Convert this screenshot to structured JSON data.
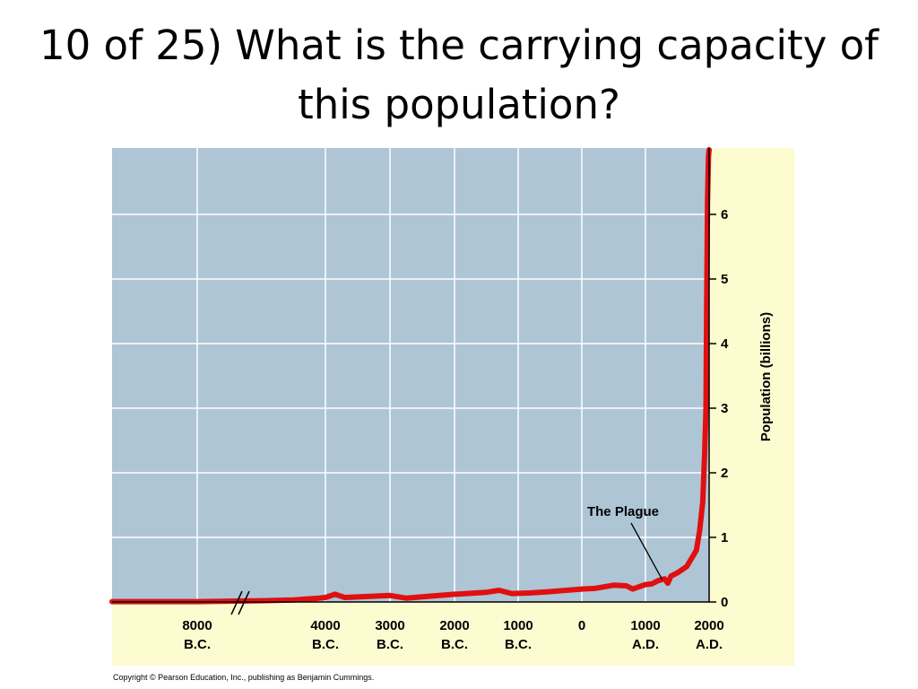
{
  "slide": {
    "title": "10 of 25) What is the carrying capacity of this population?",
    "copyright": "Copyright © Pearson Education, Inc., publishing as Benjamin Cummings."
  },
  "colors": {
    "plot_background": "#aec5d6",
    "panel_background": "#fdfbd0",
    "gridline": "#ffffff",
    "curve": "#e01010",
    "axis": "#000000"
  },
  "chart_data": {
    "type": "line",
    "title": "",
    "xlabel": "",
    "ylabel": "Population (billions)",
    "ylim": [
      0,
      7
    ],
    "y_ticks": [
      0,
      1,
      2,
      3,
      4,
      5,
      6
    ],
    "y_axis_position": "right",
    "grid": true,
    "x_axis_break_after": "8000 B.C.",
    "x_ticks": [
      {
        "year": -8000,
        "line1": "8000",
        "line2": "B.C."
      },
      {
        "year": -4000,
        "line1": "4000",
        "line2": "B.C."
      },
      {
        "year": -3000,
        "line1": "3000",
        "line2": "B.C."
      },
      {
        "year": -2000,
        "line1": "2000",
        "line2": "B.C."
      },
      {
        "year": -1000,
        "line1": "1000",
        "line2": "B.C."
      },
      {
        "year": 0,
        "line1": "0",
        "line2": ""
      },
      {
        "year": 1000,
        "line1": "1000",
        "line2": "A.D."
      },
      {
        "year": 2000,
        "line1": "2000",
        "line2": "A.D."
      }
    ],
    "series": [
      {
        "points": [
          [
            -9300,
            0.005
          ],
          [
            -8000,
            0.005
          ],
          [
            -6000,
            0.02
          ],
          [
            -5000,
            0.03
          ],
          [
            -4200,
            0.06
          ],
          [
            -4000,
            0.07
          ],
          [
            -3850,
            0.12
          ],
          [
            -3700,
            0.07
          ],
          [
            -3000,
            0.1
          ],
          [
            -2750,
            0.06
          ],
          [
            -2500,
            0.08
          ],
          [
            -2000,
            0.12
          ],
          [
            -1500,
            0.15
          ],
          [
            -1300,
            0.18
          ],
          [
            -1100,
            0.13
          ],
          [
            -800,
            0.14
          ],
          [
            -500,
            0.16
          ],
          [
            0,
            0.2
          ],
          [
            200,
            0.21
          ],
          [
            500,
            0.26
          ],
          [
            700,
            0.25
          ],
          [
            800,
            0.2
          ],
          [
            1000,
            0.27
          ],
          [
            1100,
            0.28
          ],
          [
            1200,
            0.33
          ],
          [
            1300,
            0.36
          ],
          [
            1350,
            0.29
          ],
          [
            1400,
            0.4
          ],
          [
            1500,
            0.45
          ],
          [
            1650,
            0.55
          ],
          [
            1800,
            0.8
          ],
          [
            1850,
            1.1
          ],
          [
            1900,
            1.55
          ],
          [
            1930,
            2.3
          ],
          [
            1950,
            3.0
          ],
          [
            1960,
            4.5
          ],
          [
            1975,
            6.2
          ],
          [
            1990,
            6.9
          ],
          [
            2000,
            7.0
          ]
        ]
      }
    ],
    "annotations": [
      {
        "text": "The Plague",
        "year": 1350,
        "value": 0.3
      }
    ]
  }
}
